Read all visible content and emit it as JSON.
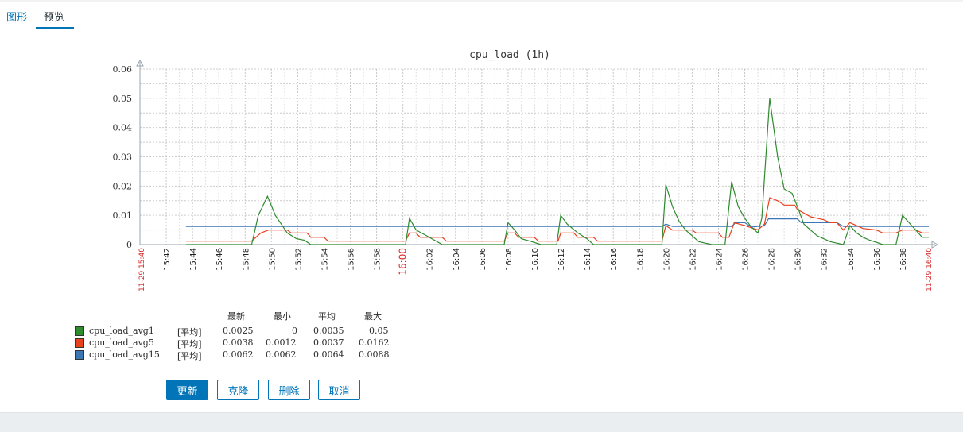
{
  "tabs": [
    {
      "label": "图形"
    },
    {
      "label": "预览"
    }
  ],
  "active_tab": 1,
  "chart_data": {
    "type": "line",
    "title": "cpu_load (1h)",
    "ylim": [
      0,
      0.06
    ],
    "yticks": [
      "0",
      "0.01",
      "0.02",
      "0.03",
      "0.04",
      "0.05",
      "0.06"
    ],
    "xticks": [
      "15:42",
      "15:44",
      "15:46",
      "15:48",
      "15:50",
      "15:52",
      "15:54",
      "15:56",
      "15:58",
      "16:00",
      "16:02",
      "16:04",
      "16:06",
      "16:08",
      "16:10",
      "16:12",
      "16:14",
      "16:16",
      "16:18",
      "16:20",
      "16:22",
      "16:24",
      "16:26",
      "16:28",
      "16:30",
      "16:32",
      "16:34",
      "16:36",
      "16:38"
    ],
    "highlight_tick": "16:00",
    "range_start_label": "11-29 15:40",
    "range_end_label": "11-29 16:40",
    "grid": true,
    "series": [
      {
        "name": "cpu_load_avg1",
        "color": "#2e8b2e",
        "points": [
          [
            43.5,
            0
          ],
          [
            48.5,
            0
          ],
          [
            49,
            0.01
          ],
          [
            49.7,
            0.0165
          ],
          [
            50.3,
            0.01
          ],
          [
            51.2,
            0.004
          ],
          [
            51.9,
            0.002
          ],
          [
            52.5,
            0.0015
          ],
          [
            53,
            0
          ],
          [
            60.2,
            0
          ],
          [
            60.5,
            0.009
          ],
          [
            61,
            0.005
          ],
          [
            61.8,
            0.003
          ],
          [
            62.4,
            0.0015
          ],
          [
            63,
            0
          ],
          [
            67.7,
            0
          ],
          [
            68,
            0.0075
          ],
          [
            68.5,
            0.005
          ],
          [
            69,
            0.002
          ],
          [
            69.8,
            0.001
          ],
          [
            70.5,
            0
          ],
          [
            71.7,
            0
          ],
          [
            72,
            0.01
          ],
          [
            72.5,
            0.007
          ],
          [
            73.3,
            0.004
          ],
          [
            74,
            0.002
          ],
          [
            74.5,
            0
          ],
          [
            79.7,
            0
          ],
          [
            80,
            0.0205
          ],
          [
            80.5,
            0.013
          ],
          [
            81,
            0.008
          ],
          [
            81.5,
            0.005
          ],
          [
            82,
            0.003
          ],
          [
            82.5,
            0.001
          ],
          [
            83,
            0.0005
          ],
          [
            83.5,
            0
          ],
          [
            84.5,
            0
          ],
          [
            85,
            0.0215
          ],
          [
            85.5,
            0.013
          ],
          [
            86,
            0.009
          ],
          [
            86.5,
            0.006
          ],
          [
            87,
            0.004
          ],
          [
            87.3,
            0.009
          ],
          [
            87.9,
            0.05
          ],
          [
            88.5,
            0.03
          ],
          [
            89,
            0.019
          ],
          [
            89.6,
            0.0175
          ],
          [
            90,
            0.013
          ],
          [
            90.5,
            0.007
          ],
          [
            91,
            0.005
          ],
          [
            91.5,
            0.003
          ],
          [
            92,
            0.002
          ],
          [
            92.5,
            0.001
          ],
          [
            93,
            0.0005
          ],
          [
            93.5,
            0
          ],
          [
            94,
            0.0065
          ],
          [
            94.5,
            0.004
          ],
          [
            95,
            0.0025
          ],
          [
            95.5,
            0.0015
          ],
          [
            96,
            0.0008
          ],
          [
            96.5,
            0
          ],
          [
            97.5,
            0
          ],
          [
            98,
            0.01
          ],
          [
            98.5,
            0.0075
          ],
          [
            99,
            0.005
          ],
          [
            99.5,
            0.0025
          ],
          [
            100,
            0.0025
          ]
        ]
      },
      {
        "name": "cpu_load_avg5",
        "color": "#e8411f",
        "points": [
          [
            43.5,
            0.0012
          ],
          [
            48.5,
            0.0012
          ],
          [
            49.2,
            0.004
          ],
          [
            49.8,
            0.005
          ],
          [
            51.2,
            0.005
          ],
          [
            51.5,
            0.004
          ],
          [
            52.7,
            0.004
          ],
          [
            53,
            0.0025
          ],
          [
            54,
            0.0025
          ],
          [
            54.3,
            0.0012
          ],
          [
            60.2,
            0.0012
          ],
          [
            60.5,
            0.004
          ],
          [
            61,
            0.004
          ],
          [
            61.3,
            0.0025
          ],
          [
            63,
            0.0025
          ],
          [
            63.3,
            0.0012
          ],
          [
            67.7,
            0.0012
          ],
          [
            68,
            0.004
          ],
          [
            68.5,
            0.004
          ],
          [
            68.8,
            0.0025
          ],
          [
            70,
            0.0025
          ],
          [
            70.3,
            0.0012
          ],
          [
            71.8,
            0.0012
          ],
          [
            72,
            0.004
          ],
          [
            73,
            0.004
          ],
          [
            73.3,
            0.0025
          ],
          [
            74.5,
            0.0025
          ],
          [
            74.8,
            0.0012
          ],
          [
            79.7,
            0.0012
          ],
          [
            80,
            0.0065
          ],
          [
            80.5,
            0.005
          ],
          [
            82,
            0.005
          ],
          [
            82.3,
            0.004
          ],
          [
            84,
            0.004
          ],
          [
            84.3,
            0.0025
          ],
          [
            84.8,
            0.0025
          ],
          [
            85.2,
            0.0075
          ],
          [
            86,
            0.0065
          ],
          [
            87,
            0.005
          ],
          [
            87.5,
            0.007
          ],
          [
            87.9,
            0.016
          ],
          [
            88.5,
            0.015
          ],
          [
            89,
            0.0135
          ],
          [
            89.8,
            0.0135
          ],
          [
            90,
            0.012
          ],
          [
            91,
            0.0095
          ],
          [
            91.5,
            0.009
          ],
          [
            92,
            0.0085
          ],
          [
            92.5,
            0.0075
          ],
          [
            93,
            0.0075
          ],
          [
            93.5,
            0.005
          ],
          [
            94,
            0.0075
          ],
          [
            94.5,
            0.0065
          ],
          [
            95,
            0.0055
          ],
          [
            96,
            0.005
          ],
          [
            96.5,
            0.004
          ],
          [
            97.5,
            0.004
          ],
          [
            98,
            0.005
          ],
          [
            99,
            0.005
          ],
          [
            99.5,
            0.004
          ],
          [
            100,
            0.004
          ]
        ]
      },
      {
        "name": "cpu_load_avg15",
        "color": "#3c77b5",
        "points": [
          [
            43.5,
            0.0062
          ],
          [
            79.7,
            0.0062
          ],
          [
            80,
            0.007
          ],
          [
            80.5,
            0.0062
          ],
          [
            85,
            0.0062
          ],
          [
            85.3,
            0.0075
          ],
          [
            86,
            0.0075
          ],
          [
            86.5,
            0.006
          ],
          [
            87,
            0.0062
          ],
          [
            87.5,
            0.0065
          ],
          [
            87.8,
            0.0088
          ],
          [
            90,
            0.0088
          ],
          [
            90.3,
            0.0075
          ],
          [
            93,
            0.0075
          ],
          [
            93.5,
            0.0062
          ],
          [
            100,
            0.0062
          ]
        ]
      }
    ]
  },
  "legend": {
    "headers": {
      "last": "最新",
      "min": "最小",
      "avg": "平均",
      "max": "最大"
    },
    "rows": [
      {
        "name": "cpu_load_avg1",
        "func": "[平均]",
        "last": "0.0025",
        "min": "0",
        "avg": "0.0035",
        "max": "0.05",
        "color": "#2e8b2e"
      },
      {
        "name": "cpu_load_avg5",
        "func": "[平均]",
        "last": "0.0038",
        "min": "0.0012",
        "avg": "0.0037",
        "max": "0.0162",
        "color": "#e8411f"
      },
      {
        "name": "cpu_load_avg15",
        "func": "[平均]",
        "last": "0.0062",
        "min": "0.0062",
        "avg": "0.0064",
        "max": "0.0088",
        "color": "#3c77b5"
      }
    ]
  },
  "buttons": {
    "update": "更新",
    "clone": "克隆",
    "delete": "删除",
    "cancel": "取消"
  }
}
